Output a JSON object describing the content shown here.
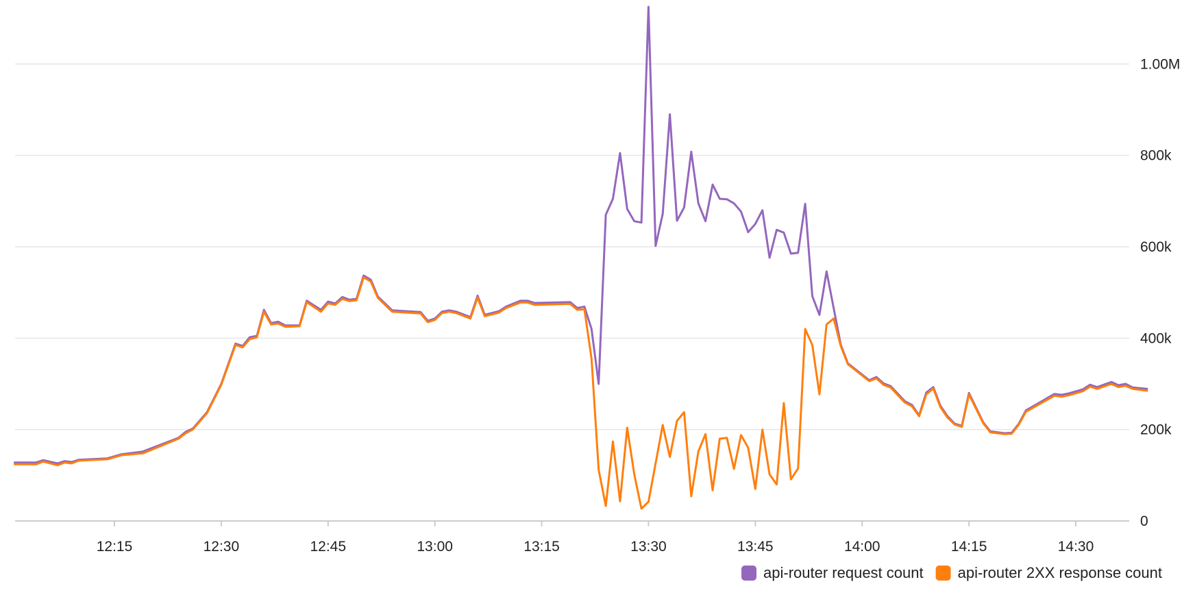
{
  "chart_data": {
    "type": "line",
    "x_axis": {
      "range": [
        "12:01",
        "14:37"
      ],
      "ticks": [
        "12:15",
        "12:30",
        "12:45",
        "13:00",
        "13:15",
        "13:30",
        "13:45",
        "14:00",
        "14:15",
        "14:30"
      ]
    },
    "y_axis": {
      "position": "right",
      "range": [
        0,
        1125000
      ],
      "ticks": [
        {
          "value": 0,
          "label": "0"
        },
        {
          "value": 200000,
          "label": "200k"
        },
        {
          "value": 400000,
          "label": "400k"
        },
        {
          "value": 600000,
          "label": "600k"
        },
        {
          "value": 800000,
          "label": "800k"
        },
        {
          "value": 1000000,
          "label": "1.00M"
        }
      ]
    },
    "grid": true,
    "legend": "bottom-right",
    "series": [
      {
        "name": "api-router request count",
        "color": "#9467bd",
        "points": [
          [
            "12:01",
            128000
          ],
          [
            "12:04",
            128000
          ],
          [
            "12:05",
            133000
          ],
          [
            "12:07",
            126000
          ],
          [
            "12:08",
            131000
          ],
          [
            "12:09",
            129000
          ],
          [
            "12:10",
            134000
          ],
          [
            "12:14",
            137000
          ],
          [
            "12:16",
            146000
          ],
          [
            "12:19",
            152000
          ],
          [
            "12:24",
            182000
          ],
          [
            "12:25",
            195000
          ],
          [
            "12:26",
            202000
          ],
          [
            "12:28",
            238000
          ],
          [
            "12:30",
            300000
          ],
          [
            "12:32",
            388000
          ],
          [
            "12:33",
            383000
          ],
          [
            "12:34",
            402000
          ],
          [
            "12:35",
            405000
          ],
          [
            "12:36",
            462000
          ],
          [
            "12:37",
            433000
          ],
          [
            "12:38",
            436000
          ],
          [
            "12:39",
            428000
          ],
          [
            "12:41",
            428000
          ],
          [
            "12:42",
            482000
          ],
          [
            "12:44",
            462000
          ],
          [
            "12:45",
            480000
          ],
          [
            "12:46",
            476000
          ],
          [
            "12:47",
            490000
          ],
          [
            "12:48",
            484000
          ],
          [
            "12:49",
            486000
          ],
          [
            "12:50",
            537000
          ],
          [
            "12:51",
            528000
          ],
          [
            "12:52",
            491000
          ],
          [
            "12:54",
            461000
          ],
          [
            "12:58",
            457000
          ],
          [
            "12:59",
            438000
          ],
          [
            "13:00",
            443000
          ],
          [
            "13:01",
            458000
          ],
          [
            "13:02",
            461000
          ],
          [
            "13:03",
            458000
          ],
          [
            "13:05",
            446000
          ],
          [
            "13:06",
            493000
          ],
          [
            "13:07",
            451000
          ],
          [
            "13:09",
            459000
          ],
          [
            "13:10",
            469000
          ],
          [
            "13:12",
            482000
          ],
          [
            "13:13",
            482000
          ],
          [
            "13:14",
            477000
          ],
          [
            "13:19",
            479000
          ],
          [
            "13:20",
            466000
          ],
          [
            "13:21",
            469000
          ],
          [
            "13:22",
            420000
          ],
          [
            "13:23",
            300000
          ],
          [
            "13:24",
            670000
          ],
          [
            "13:25",
            705000
          ],
          [
            "13:26",
            805000
          ],
          [
            "13:27",
            683000
          ],
          [
            "13:28",
            656000
          ],
          [
            "13:29",
            653000
          ],
          [
            "13:30",
            1125000
          ],
          [
            "13:31",
            602000
          ],
          [
            "13:32",
            672000
          ],
          [
            "13:33",
            890000
          ],
          [
            "13:34",
            657000
          ],
          [
            "13:35",
            686000
          ],
          [
            "13:36",
            808000
          ],
          [
            "13:37",
            695000
          ],
          [
            "13:38",
            656000
          ],
          [
            "13:39",
            736000
          ],
          [
            "13:40",
            705000
          ],
          [
            "13:41",
            704000
          ],
          [
            "13:42",
            695000
          ],
          [
            "13:43",
            677000
          ],
          [
            "13:44",
            632000
          ],
          [
            "13:45",
            650000
          ],
          [
            "13:46",
            680000
          ],
          [
            "13:47",
            576000
          ],
          [
            "13:48",
            637000
          ],
          [
            "13:49",
            631000
          ],
          [
            "13:50",
            585000
          ],
          [
            "13:51",
            587000
          ],
          [
            "13:52",
            694000
          ],
          [
            "13:53",
            492000
          ],
          [
            "13:54",
            451000
          ],
          [
            "13:55",
            546000
          ],
          [
            "13:57",
            386000
          ],
          [
            "13:58",
            345000
          ],
          [
            "14:01",
            308000
          ],
          [
            "14:02",
            315000
          ],
          [
            "14:03",
            301000
          ],
          [
            "14:04",
            295000
          ],
          [
            "14:06",
            262000
          ],
          [
            "14:07",
            254000
          ],
          [
            "14:08",
            231000
          ],
          [
            "14:09",
            281000
          ],
          [
            "14:10",
            293000
          ],
          [
            "14:11",
            252000
          ],
          [
            "14:12",
            229000
          ],
          [
            "14:13",
            213000
          ],
          [
            "14:14",
            208000
          ],
          [
            "14:15",
            280000
          ],
          [
            "14:17",
            216000
          ],
          [
            "14:18",
            196000
          ],
          [
            "14:20",
            192000
          ],
          [
            "14:21",
            193000
          ],
          [
            "14:22",
            213000
          ],
          [
            "14:23",
            242000
          ],
          [
            "14:27",
            278000
          ],
          [
            "14:28",
            276000
          ],
          [
            "14:29",
            279000
          ],
          [
            "14:31",
            288000
          ],
          [
            "14:32",
            298000
          ],
          [
            "14:33",
            293000
          ],
          [
            "14:35",
            304000
          ],
          [
            "14:36",
            297000
          ],
          [
            "14:37",
            300000
          ],
          [
            "14:38",
            292000
          ],
          [
            "14:40",
            289000
          ]
        ]
      },
      {
        "name": "api-router 2XX response count",
        "color": "#ff7f0e",
        "points": [
          [
            "12:01",
            124000
          ],
          [
            "12:04",
            124000
          ],
          [
            "12:05",
            130000
          ],
          [
            "12:07",
            122000
          ],
          [
            "12:08",
            128000
          ],
          [
            "12:09",
            126000
          ],
          [
            "12:10",
            132000
          ],
          [
            "12:14",
            135000
          ],
          [
            "12:16",
            144000
          ],
          [
            "12:19",
            148000
          ],
          [
            "12:24",
            180000
          ],
          [
            "12:25",
            192000
          ],
          [
            "12:26",
            200000
          ],
          [
            "12:28",
            236000
          ],
          [
            "12:30",
            298000
          ],
          [
            "12:32",
            385000
          ],
          [
            "12:33",
            380000
          ],
          [
            "12:34",
            398000
          ],
          [
            "12:35",
            402000
          ],
          [
            "12:36",
            458000
          ],
          [
            "12:37",
            430000
          ],
          [
            "12:38",
            432000
          ],
          [
            "12:39",
            425000
          ],
          [
            "12:41",
            426000
          ],
          [
            "12:42",
            479000
          ],
          [
            "12:44",
            458000
          ],
          [
            "12:45",
            476000
          ],
          [
            "12:46",
            473000
          ],
          [
            "12:47",
            486000
          ],
          [
            "12:48",
            481000
          ],
          [
            "12:49",
            483000
          ],
          [
            "12:50",
            533000
          ],
          [
            "12:51",
            524000
          ],
          [
            "12:52",
            488000
          ],
          [
            "12:54",
            458000
          ],
          [
            "12:58",
            454000
          ],
          [
            "12:59",
            435000
          ],
          [
            "13:00",
            440000
          ],
          [
            "13:01",
            455000
          ],
          [
            "13:02",
            458000
          ],
          [
            "13:03",
            455000
          ],
          [
            "13:05",
            443000
          ],
          [
            "13:06",
            489000
          ],
          [
            "13:07",
            448000
          ],
          [
            "13:09",
            456000
          ],
          [
            "13:10",
            466000
          ],
          [
            "13:12",
            478000
          ],
          [
            "13:13",
            478000
          ],
          [
            "13:14",
            473000
          ],
          [
            "13:19",
            475000
          ],
          [
            "13:20",
            462000
          ],
          [
            "13:21",
            463000
          ],
          [
            "13:22",
            355000
          ],
          [
            "13:23",
            112000
          ],
          [
            "13:24",
            33000
          ],
          [
            "13:25",
            174000
          ],
          [
            "13:26",
            43000
          ],
          [
            "13:27",
            204000
          ],
          [
            "13:28",
            102000
          ],
          [
            "13:29",
            27000
          ],
          [
            "13:30",
            42000
          ],
          [
            "13:32",
            210000
          ],
          [
            "13:33",
            140000
          ],
          [
            "13:34",
            219000
          ],
          [
            "13:35",
            238000
          ],
          [
            "13:36",
            54000
          ],
          [
            "13:37",
            152000
          ],
          [
            "13:38",
            190000
          ],
          [
            "13:39",
            67000
          ],
          [
            "13:40",
            180000
          ],
          [
            "13:41",
            182000
          ],
          [
            "13:42",
            114000
          ],
          [
            "13:43",
            188000
          ],
          [
            "13:44",
            160000
          ],
          [
            "13:45",
            70000
          ],
          [
            "13:46",
            200000
          ],
          [
            "13:47",
            102000
          ],
          [
            "13:48",
            80000
          ],
          [
            "13:49",
            258000
          ],
          [
            "13:50",
            91000
          ],
          [
            "13:51",
            115000
          ],
          [
            "13:52",
            420000
          ],
          [
            "13:53",
            385000
          ],
          [
            "13:54",
            277000
          ],
          [
            "13:55",
            430000
          ],
          [
            "13:56",
            443000
          ],
          [
            "13:57",
            383000
          ],
          [
            "13:58",
            343000
          ],
          [
            "14:01",
            306000
          ],
          [
            "14:02",
            312000
          ],
          [
            "14:03",
            298000
          ],
          [
            "14:04",
            292000
          ],
          [
            "14:06",
            259000
          ],
          [
            "14:07",
            251000
          ],
          [
            "14:08",
            229000
          ],
          [
            "14:09",
            277000
          ],
          [
            "14:10",
            290000
          ],
          [
            "14:11",
            249000
          ],
          [
            "14:12",
            226000
          ],
          [
            "14:13",
            211000
          ],
          [
            "14:14",
            206000
          ],
          [
            "14:15",
            277000
          ],
          [
            "14:17",
            214000
          ],
          [
            "14:18",
            194000
          ],
          [
            "14:20",
            190000
          ],
          [
            "14:21",
            191000
          ],
          [
            "14:22",
            211000
          ],
          [
            "14:23",
            239000
          ],
          [
            "14:27",
            274000
          ],
          [
            "14:28",
            272000
          ],
          [
            "14:29",
            275000
          ],
          [
            "14:31",
            284000
          ],
          [
            "14:32",
            294000
          ],
          [
            "14:33",
            289000
          ],
          [
            "14:35",
            300000
          ],
          [
            "14:36",
            293000
          ],
          [
            "14:37",
            296000
          ],
          [
            "14:38",
            289000
          ],
          [
            "14:40",
            285000
          ]
        ]
      }
    ]
  }
}
